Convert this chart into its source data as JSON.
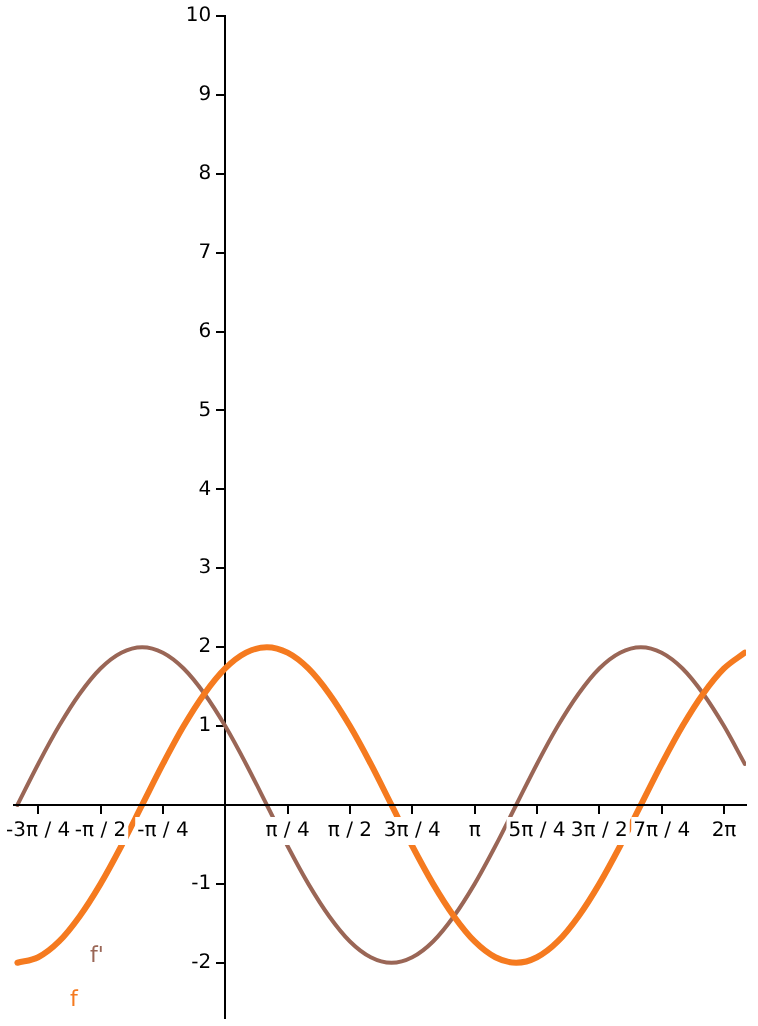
{
  "chart_data": {
    "type": "line",
    "x": [
      -2.618,
      -2.356,
      -2.094,
      -1.833,
      -1.571,
      -1.309,
      -1.047,
      -0.785,
      -0.524,
      -0.262,
      0,
      0.262,
      0.524,
      0.785,
      1.047,
      1.309,
      1.571,
      1.833,
      2.094,
      2.356,
      2.618,
      2.88,
      3.142,
      3.403,
      3.665,
      3.927,
      4.189,
      4.451,
      4.712,
      4.974,
      5.236,
      5.498,
      5.76,
      6.021,
      6.283,
      6.545
    ],
    "series": [
      {
        "name": "f",
        "color": "#f57a1f",
        "values": [
          -2,
          -1.93,
          -1.73,
          -1.41,
          -1,
          -0.52,
          0,
          0.52,
          1,
          1.41,
          1.73,
          1.93,
          2,
          1.93,
          1.73,
          1.41,
          1,
          0.52,
          0,
          -0.52,
          -1,
          -1.41,
          -1.73,
          -1.93,
          -2,
          -1.93,
          -1.73,
          -1.41,
          -1,
          -0.52,
          0,
          0.52,
          1,
          1.41,
          1.73,
          1.93
        ]
      },
      {
        "name": "f'",
        "color": "#9a6656",
        "values": [
          0,
          0.52,
          1,
          1.41,
          1.73,
          1.93,
          2,
          1.93,
          1.73,
          1.41,
          1,
          0.52,
          0,
          -0.52,
          -1,
          -1.41,
          -1.73,
          -1.93,
          -2,
          -1.93,
          -1.73,
          -1.41,
          -1,
          -0.52,
          0,
          0.52,
          1,
          1.41,
          1.73,
          1.93,
          2,
          1.93,
          1.73,
          1.41,
          1,
          0.52
        ]
      }
    ],
    "xlim": [
      -2.66,
      6.56
    ],
    "ylim": [
      -2.7,
      10
    ],
    "xticks": [
      {
        "value": -2.356,
        "label": "-3π / 4"
      },
      {
        "value": -1.571,
        "label": "-π / 2"
      },
      {
        "value": -0.785,
        "label": "-π / 4"
      },
      {
        "value": 0.785,
        "label": "π / 4"
      },
      {
        "value": 1.571,
        "label": "π / 2"
      },
      {
        "value": 2.356,
        "label": "3π / 4"
      },
      {
        "value": 3.142,
        "label": "π"
      },
      {
        "value": 3.927,
        "label": "5π / 4"
      },
      {
        "value": 4.712,
        "label": "3π / 2"
      },
      {
        "value": 5.498,
        "label": "7π / 4"
      },
      {
        "value": 6.283,
        "label": "2π"
      }
    ],
    "yticks": [
      -2,
      -1,
      1,
      2,
      3,
      4,
      5,
      6,
      7,
      8,
      9,
      10
    ],
    "grid": false,
    "legend": false,
    "marker": "none",
    "line_style": "solid"
  }
}
